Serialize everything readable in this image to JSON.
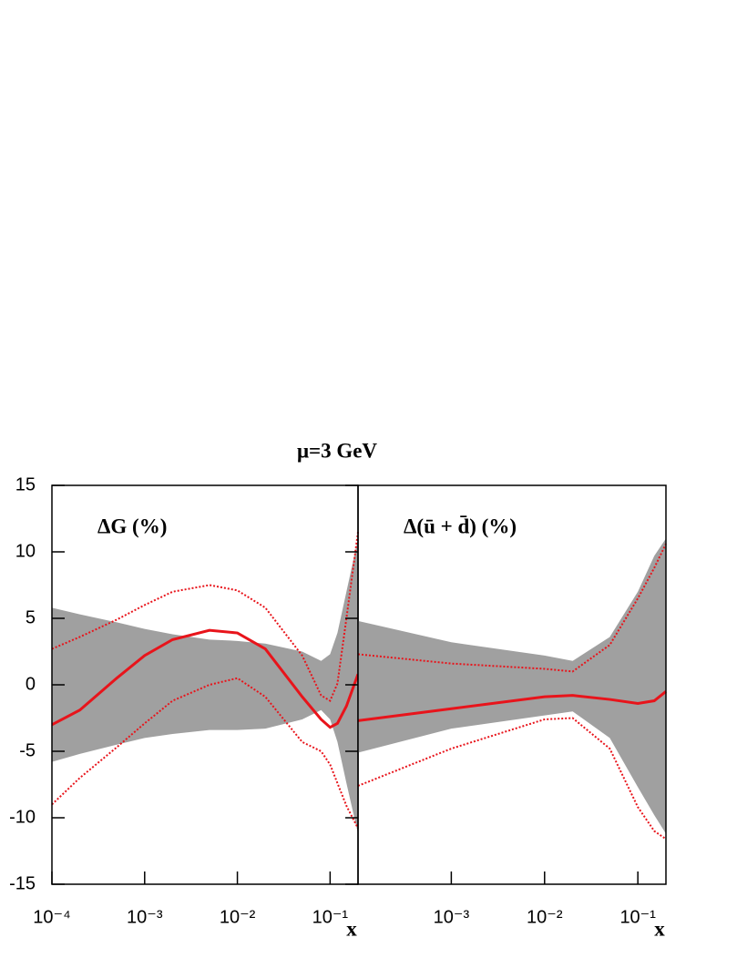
{
  "chart_data": [
    {
      "type": "line",
      "title": "μ=3 GeV",
      "label": "ΔG (%)",
      "xlabel": "x",
      "log_x": true,
      "xlim": [
        0.0001,
        0.2
      ],
      "ylim": [
        -15,
        15
      ],
      "xticks": [
        {
          "value": 0.0001,
          "label": "10⁻⁴"
        },
        {
          "value": 0.001,
          "label": "10⁻³"
        },
        {
          "value": 0.01,
          "label": "10⁻²"
        },
        {
          "value": 0.1,
          "label": "10⁻¹"
        }
      ],
      "yticks": [
        15,
        10,
        5,
        0,
        -5,
        -10,
        -15
      ],
      "x": [
        0.0001,
        0.0002,
        0.0005,
        0.001,
        0.002,
        0.005,
        0.01,
        0.02,
        0.05,
        0.08,
        0.1,
        0.12,
        0.15,
        0.2
      ],
      "band": {
        "color": "#a0a0a0",
        "upper": [
          5.8,
          5.3,
          4.7,
          4.2,
          3.8,
          3.4,
          3.3,
          3.1,
          2.5,
          1.8,
          2.3,
          3.9,
          7.0,
          11.0
        ],
        "lower": [
          -5.8,
          -5.2,
          -4.5,
          -4.0,
          -3.7,
          -3.4,
          -3.4,
          -3.3,
          -2.6,
          -1.9,
          -2.6,
          -4.3,
          -7.4,
          -11.2
        ]
      },
      "series": [
        {
          "color": "#e8141b",
          "style": "solid",
          "values": [
            -3.0,
            -1.9,
            0.5,
            2.2,
            3.4,
            4.1,
            3.9,
            2.7,
            -0.9,
            -2.6,
            -3.2,
            -2.9,
            -1.6,
            0.8
          ]
        },
        {
          "color": "#e8141b",
          "style": "dotted",
          "values": [
            2.7,
            3.6,
            4.9,
            6.0,
            7.0,
            7.5,
            7.1,
            5.8,
            2.2,
            -0.8,
            -1.2,
            0.1,
            5.0,
            11.5
          ]
        },
        {
          "color": "#e8141b",
          "style": "dotted",
          "values": [
            -9.0,
            -7.0,
            -4.7,
            -2.9,
            -1.2,
            0.0,
            0.5,
            -0.9,
            -4.3,
            -5.0,
            -6.0,
            -7.4,
            -9.1,
            -10.8
          ]
        }
      ]
    },
    {
      "type": "line",
      "label": "Δ(ū + d̄) (%)",
      "xlabel": "x",
      "log_x": true,
      "xlim": [
        0.0001,
        0.2
      ],
      "ylim": [
        -15,
        15
      ],
      "xticks": [
        {
          "value": 0.001,
          "label": "10⁻³"
        },
        {
          "value": 0.01,
          "label": "10⁻²"
        },
        {
          "value": 0.1,
          "label": "10⁻¹"
        }
      ],
      "x": [
        0.0001,
        0.001,
        0.01,
        0.02,
        0.05,
        0.1,
        0.15,
        0.2
      ],
      "band": {
        "color": "#a0a0a0",
        "upper": [
          4.8,
          3.2,
          2.2,
          1.8,
          3.6,
          7.0,
          9.7,
          11.0
        ],
        "lower": [
          -5.1,
          -3.3,
          -2.3,
          -2.0,
          -4.0,
          -7.7,
          -9.8,
          -11.2
        ]
      },
      "series": [
        {
          "color": "#e8141b",
          "style": "solid",
          "values": [
            -2.7,
            -1.8,
            -0.9,
            -0.8,
            -1.1,
            -1.4,
            -1.2,
            -0.5
          ]
        },
        {
          "color": "#e8141b",
          "style": "dotted",
          "values": [
            2.3,
            1.6,
            1.2,
            1.0,
            3.0,
            6.5,
            8.8,
            10.6
          ]
        },
        {
          "color": "#e8141b",
          "style": "dotted",
          "values": [
            -7.6,
            -4.8,
            -2.6,
            -2.5,
            -4.8,
            -9.2,
            -11.0,
            -11.6
          ]
        }
      ]
    }
  ]
}
